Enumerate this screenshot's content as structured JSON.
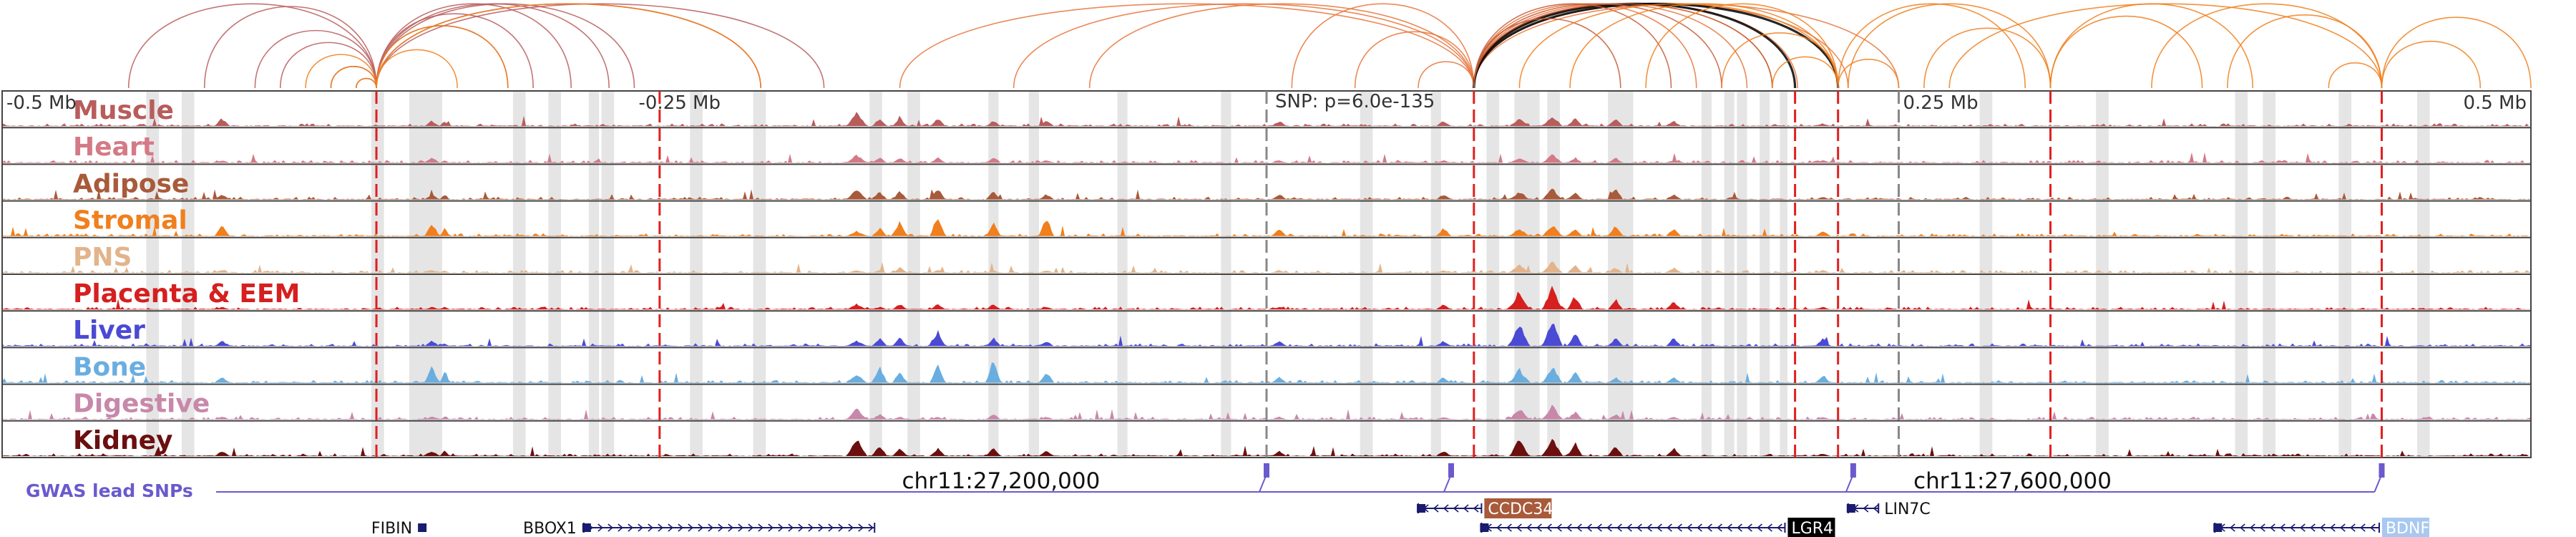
{
  "chart_data": {
    "type": "genome_browser",
    "region": {
      "start_mb": -0.5,
      "end_mb": 0.5
    },
    "scale_labels": [
      {
        "text": "-0.5 Mb",
        "mb": -0.5
      },
      {
        "text": "-0.25 Mb",
        "mb": -0.25
      },
      {
        "text": "0.25 Mb",
        "mb": 0.25
      },
      {
        "text": "0.5 Mb",
        "mb": 0.5
      }
    ],
    "snp_label": "SNP: p=6.0e-135",
    "lead_snp_mb": 0.0,
    "tracks": [
      {
        "name": "Muscle",
        "color": "#b85c5c"
      },
      {
        "name": "Heart",
        "color": "#d47a86"
      },
      {
        "name": "Adipose",
        "color": "#a85a3a"
      },
      {
        "name": "Stromal",
        "color": "#f07f1d"
      },
      {
        "name": "PNS",
        "color": "#e2b48c"
      },
      {
        "name": "Placenta & EEM",
        "color": "#d61f1f"
      },
      {
        "name": "Liver",
        "color": "#4a4ad4"
      },
      {
        "name": "Bone",
        "color": "#6aaee0"
      },
      {
        "name": "Digestive",
        "color": "#c888aa"
      },
      {
        "name": "Kidney",
        "color": "#6b0f0f"
      }
    ],
    "peaks": [
      {
        "mb": -0.162,
        "w": 0.004,
        "h": [
          0.5,
          0.3,
          0.4,
          0.2,
          0.1,
          0.2,
          0.2,
          0.3,
          0.4,
          0.7
        ]
      },
      {
        "mb": -0.153,
        "w": 0.003,
        "h": [
          0.3,
          0.2,
          0.3,
          0.3,
          0.1,
          0.1,
          0.3,
          0.6,
          0.2,
          0.4
        ]
      },
      {
        "mb": -0.145,
        "w": 0.003,
        "h": [
          0.3,
          0.2,
          0.3,
          0.6,
          0.2,
          0.2,
          0.3,
          0.4,
          0.1,
          0.3
        ]
      },
      {
        "mb": -0.13,
        "w": 0.003,
        "h": [
          0.3,
          0.2,
          0.4,
          0.8,
          0.1,
          0.2,
          0.6,
          0.7,
          0.1,
          0.3
        ]
      },
      {
        "mb": -0.108,
        "w": 0.003,
        "h": [
          0.2,
          0.2,
          0.3,
          0.5,
          0.1,
          0.2,
          0.3,
          0.9,
          0.2,
          0.3
        ]
      },
      {
        "mb": -0.087,
        "w": 0.003,
        "h": [
          0.2,
          0.1,
          0.2,
          0.7,
          0.1,
          0.1,
          0.2,
          0.4,
          0.1,
          0.2
        ]
      },
      {
        "mb": -0.413,
        "w": 0.003,
        "h": [
          0.3,
          0.1,
          0.2,
          0.4,
          0.1,
          0.1,
          0.2,
          0.2,
          0.1,
          0.2
        ]
      },
      {
        "mb": -0.33,
        "w": 0.003,
        "h": [
          0.2,
          0.2,
          0.2,
          0.5,
          0.1,
          0.1,
          0.2,
          0.6,
          0.1,
          0.2
        ]
      },
      {
        "mb": -0.325,
        "w": 0.002,
        "h": [
          0.2,
          0.1,
          0.2,
          0.3,
          0.1,
          0.1,
          0.1,
          0.5,
          0.1,
          0.2
        ]
      },
      {
        "mb": 0.1,
        "w": 0.004,
        "h": [
          0.3,
          0.2,
          0.3,
          0.3,
          0.3,
          0.7,
          0.8,
          0.5,
          0.4,
          0.6
        ]
      },
      {
        "mb": 0.113,
        "w": 0.004,
        "h": [
          0.4,
          0.3,
          0.4,
          0.4,
          0.4,
          0.8,
          0.9,
          0.6,
          0.5,
          0.7
        ]
      },
      {
        "mb": 0.122,
        "w": 0.003,
        "h": [
          0.3,
          0.2,
          0.3,
          0.3,
          0.3,
          0.5,
          0.5,
          0.4,
          0.3,
          0.5
        ]
      },
      {
        "mb": 0.138,
        "w": 0.003,
        "h": [
          0.3,
          0.2,
          0.4,
          0.4,
          0.2,
          0.4,
          0.3,
          0.2,
          0.2,
          0.4
        ]
      },
      {
        "mb": 0.161,
        "w": 0.003,
        "h": [
          0.2,
          0.1,
          0.2,
          0.3,
          0.2,
          0.3,
          0.3,
          0.2,
          0.1,
          0.3
        ]
      },
      {
        "mb": 0.22,
        "w": 0.003,
        "h": [
          0.1,
          0.1,
          0.1,
          0.2,
          0.1,
          0.1,
          0.3,
          0.3,
          0.1,
          0.1
        ]
      },
      {
        "mb": 0.005,
        "w": 0.003,
        "h": [
          0.2,
          0.1,
          0.2,
          0.3,
          0.1,
          0.1,
          0.2,
          0.2,
          0.1,
          0.2
        ]
      },
      {
        "mb": 0.07,
        "w": 0.003,
        "h": [
          0.2,
          0.1,
          0.2,
          0.3,
          0.1,
          0.2,
          0.2,
          0.2,
          0.1,
          0.2
        ]
      }
    ],
    "ld_boxes_mb": [
      [
        -0.443,
        -0.438
      ],
      [
        -0.429,
        -0.424
      ],
      [
        -0.354,
        -0.349
      ],
      [
        -0.339,
        -0.326
      ],
      [
        -0.298,
        -0.293
      ],
      [
        -0.284,
        -0.279
      ],
      [
        -0.268,
        -0.264
      ],
      [
        -0.263,
        -0.258
      ],
      [
        -0.228,
        -0.223
      ],
      [
        -0.203,
        -0.198
      ],
      [
        -0.157,
        -0.152
      ],
      [
        -0.142,
        -0.137
      ],
      [
        -0.11,
        -0.106
      ],
      [
        -0.094,
        -0.09
      ],
      [
        -0.059,
        -0.055
      ],
      [
        -0.018,
        -0.014
      ],
      [
        0.037,
        0.042
      ],
      [
        0.065,
        0.069
      ],
      [
        0.087,
        0.092
      ],
      [
        0.098,
        0.108
      ],
      [
        0.111,
        0.116
      ],
      [
        0.135,
        0.145
      ],
      [
        0.172,
        0.176
      ],
      [
        0.181,
        0.185
      ],
      [
        0.186,
        0.19
      ],
      [
        0.195,
        0.199
      ],
      [
        0.203,
        0.206
      ],
      [
        0.282,
        0.287
      ],
      [
        0.328,
        0.333
      ],
      [
        0.383,
        0.388
      ],
      [
        0.394,
        0.399
      ],
      [
        0.424,
        0.429
      ],
      [
        0.455,
        0.46
      ]
    ],
    "red_dashed_mb": [
      -0.352,
      -0.24,
      0.082,
      0.209,
      0.226,
      0.31,
      0.441
    ],
    "gray_dashed_mb": [
      0.0,
      0.25
    ],
    "loops": {
      "anchors": [
        {
          "mb": -0.352,
          "color": "#b85c5c",
          "partners": [
            -0.45,
            -0.42,
            -0.4,
            -0.39,
            -0.37,
            -0.36,
            -0.3,
            -0.29,
            -0.275,
            -0.26,
            -0.25,
            -0.2,
            -0.175
          ]
        },
        {
          "mb": -0.352,
          "color": "#f07f1d",
          "partners": [
            -0.38,
            -0.37,
            -0.36,
            -0.32,
            -0.3,
            -0.2
          ]
        },
        {
          "mb": 0.082,
          "color": "#e8743b",
          "partners": [
            0.17,
            0.19,
            0.2,
            0.21,
            0.23,
            0.25,
            0.06,
            0.035,
            0.01,
            -0.07,
            -0.1,
            -0.145
          ]
        },
        {
          "mb": 0.082,
          "color": "#000000",
          "partners": [
            0.209,
            0.226
          ]
        },
        {
          "mb": 0.082,
          "color": "#c65a35",
          "partners": [
            0.14,
            0.16,
            0.18,
            0.2
          ]
        },
        {
          "mb": 0.226,
          "color": "#f07f1d",
          "partners": [
            0.1,
            0.12,
            0.15,
            0.18,
            0.2,
            0.25,
            0.3
          ]
        },
        {
          "mb": 0.441,
          "color": "#f07f1d",
          "partners": [
            0.27,
            0.35,
            0.38,
            0.42,
            0.48,
            0.5
          ]
        },
        {
          "mb": 0.31,
          "color": "#f07f1d",
          "partners": [
            0.23,
            0.26,
            0.37,
            0.39
          ]
        }
      ]
    },
    "gwas": {
      "label": "GWAS lead SNPs",
      "color": "#6a5acd",
      "snps_mb": [
        0.0,
        0.073,
        0.232,
        0.441
      ]
    },
    "coordinate_labels": [
      {
        "text": "chr11:27,200,000",
        "mb": -0.105
      },
      {
        "text": "chr11:27,600,000",
        "mb": 0.295
      }
    ],
    "genes": [
      {
        "name": "FIBIN",
        "start_mb": -0.335,
        "end_mb": -0.333,
        "strand": "none",
        "row": 2,
        "label_side": "left",
        "label_style": "plain"
      },
      {
        "name": "BBOX1",
        "start_mb": -0.27,
        "end_mb": -0.155,
        "strand": "+",
        "row": 2,
        "label_side": "left",
        "label_style": "plain"
      },
      {
        "name": "CCDC34",
        "start_mb": 0.06,
        "end_mb": 0.085,
        "strand": "-",
        "row": 1,
        "label_side": "right",
        "label_style": "box",
        "label_color": "#a85a3a"
      },
      {
        "name": "LGR4",
        "start_mb": 0.085,
        "end_mb": 0.205,
        "strand": "-",
        "row": 2,
        "label_side": "right",
        "label_style": "box",
        "label_color": "#000000"
      },
      {
        "name": "LIN7C",
        "start_mb": 0.23,
        "end_mb": 0.242,
        "strand": "-",
        "row": 1,
        "label_side": "right",
        "label_style": "plain"
      },
      {
        "name": "BDNF",
        "start_mb": 0.375,
        "end_mb": 0.44,
        "strand": "-",
        "row": 2,
        "label_side": "right",
        "label_style": "box",
        "label_color": "#a8c8f0"
      }
    ]
  }
}
